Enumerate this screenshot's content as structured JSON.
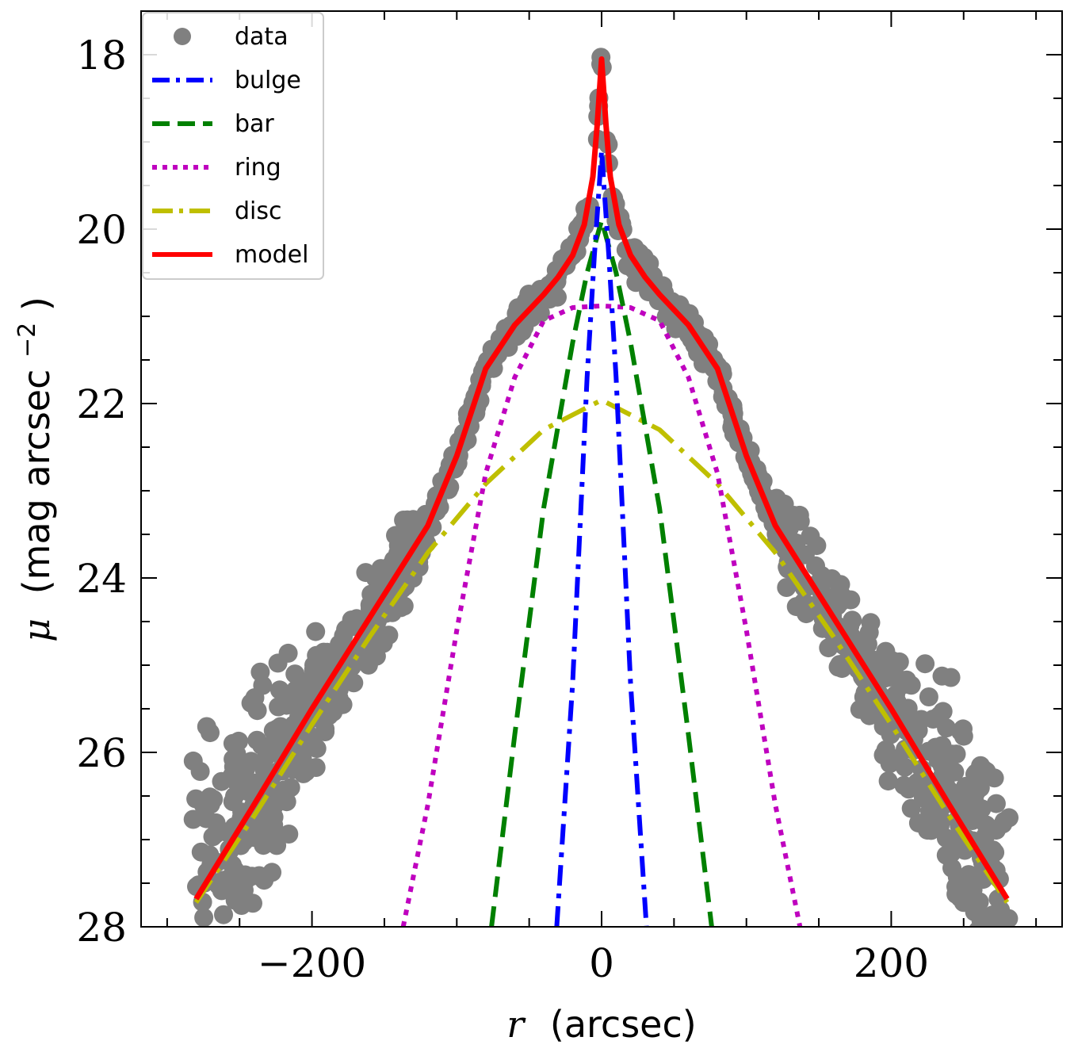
{
  "chart_data": {
    "type": "line",
    "xlabel_symbol": "r",
    "xlabel_unit": "(arcsec)",
    "ylabel_symbol": "μ",
    "ylabel_unit_pre": "(mag arcsec",
    "ylabel_unit_exp": "−2",
    "ylabel_unit_post": ")",
    "xlim": [
      -318,
      318
    ],
    "ylim": [
      28,
      17.5
    ],
    "y_inverted": true,
    "x_ticks": [
      -200,
      0,
      200
    ],
    "x_tick_labels": [
      "−200",
      "0",
      "200"
    ],
    "y_ticks": [
      18,
      20,
      22,
      24,
      26,
      28
    ],
    "y_tick_labels": [
      "18",
      "20",
      "22",
      "24",
      "26",
      "28"
    ],
    "grid": false,
    "legend_position": "top-left",
    "legend": [
      {
        "key": "data",
        "label": "data",
        "color": "#808080",
        "style": "marker"
      },
      {
        "key": "bulge",
        "label": "bulge",
        "color": "#0000ff",
        "style": "dashdot"
      },
      {
        "key": "bar",
        "label": "bar",
        "color": "#008000",
        "style": "dashed"
      },
      {
        "key": "ring",
        "label": "ring",
        "color": "#bf00bf",
        "style": "dotted"
      },
      {
        "key": "disc",
        "label": "disc",
        "color": "#bfbf00",
        "style": "dashdot-long"
      },
      {
        "key": "model",
        "label": "model",
        "color": "#ff0000",
        "style": "solid"
      }
    ],
    "series": {
      "disc": {
        "x": [
          -280,
          -240,
          -200,
          -160,
          -120,
          -80,
          -40,
          0,
          40,
          80,
          120,
          160,
          200,
          240,
          280
        ],
        "y": [
          27.72,
          26.73,
          25.68,
          24.67,
          23.71,
          22.92,
          22.3,
          21.96,
          22.3,
          22.92,
          23.71,
          24.67,
          25.68,
          26.73,
          27.72
        ]
      },
      "ring": {
        "x": [
          -137,
          -120,
          -100,
          -80,
          -60,
          -40,
          -20,
          0,
          20,
          40,
          60,
          80,
          100,
          120,
          137
        ],
        "y": [
          28.0,
          26.6,
          24.6,
          22.8,
          21.7,
          21.05,
          20.9,
          20.88,
          20.9,
          21.05,
          21.7,
          22.8,
          24.6,
          26.6,
          28.0
        ]
      },
      "bar": {
        "x": [
          -76,
          -60,
          -40,
          -20,
          -10,
          0,
          10,
          20,
          40,
          60,
          76
        ],
        "y": [
          28.0,
          25.8,
          23.2,
          21.3,
          20.5,
          19.9,
          20.5,
          21.3,
          23.2,
          25.8,
          28.0
        ]
      },
      "bulge": {
        "x": [
          -31,
          -20,
          -10,
          -5,
          -2,
          0,
          2,
          5,
          10,
          20,
          31
        ],
        "y": [
          28.0,
          25.2,
          21.7,
          20.3,
          19.6,
          19.1,
          19.6,
          20.3,
          21.7,
          25.2,
          28.0
        ]
      },
      "model": {
        "x": [
          -280,
          -240,
          -200,
          -160,
          -120,
          -100,
          -80,
          -60,
          -40,
          -30,
          -20,
          -12,
          -6,
          -3,
          0,
          3,
          6,
          12,
          20,
          30,
          40,
          60,
          80,
          100,
          120,
          160,
          200,
          240,
          280
        ],
        "y": [
          27.68,
          26.6,
          25.5,
          24.45,
          23.4,
          22.6,
          21.6,
          21.1,
          20.75,
          20.55,
          20.3,
          19.95,
          19.4,
          18.8,
          18.05,
          18.8,
          19.4,
          19.95,
          20.3,
          20.55,
          20.75,
          21.1,
          21.6,
          22.6,
          23.4,
          24.45,
          25.5,
          26.6,
          27.68
        ]
      }
    }
  }
}
